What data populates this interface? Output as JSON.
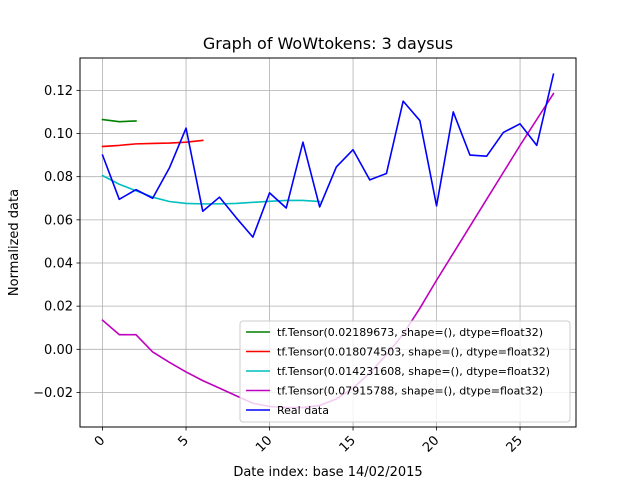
{
  "chart_data": {
    "type": "line",
    "title": "Graph of WoWtokens: 3 daysus",
    "xlabel": "Date index: base 14/02/2015",
    "ylabel": "Normalized data",
    "xlim": [
      -1.35,
      28.35
    ],
    "ylim": [
      -0.036,
      0.135
    ],
    "grid": true,
    "legend_position": "lower-right",
    "x_ticks": [
      0,
      5,
      10,
      15,
      20,
      25
    ],
    "x_tick_labels": [
      "0",
      "5",
      "10",
      "15",
      "20",
      "25"
    ],
    "x_tick_rotation": 45,
    "y_ticks": [
      -0.02,
      0.0,
      0.02,
      0.04,
      0.06,
      0.08,
      0.1,
      0.12
    ],
    "y_tick_labels": [
      "−0.02",
      "0.00",
      "0.02",
      "0.04",
      "0.06",
      "0.08",
      "0.10",
      "0.12"
    ],
    "series": [
      {
        "name": "tf.Tensor(0.02189673, shape=(), dtype=float32)",
        "color": "#008000",
        "x": [
          0,
          1,
          2
        ],
        "values": [
          0.1065,
          0.1055,
          0.1058
        ]
      },
      {
        "name": "tf.Tensor(0.018074503, shape=(), dtype=float32)",
        "color": "#ff0000",
        "x": [
          0,
          1,
          2,
          3,
          4,
          5,
          6
        ],
        "values": [
          0.094,
          0.0945,
          0.0952,
          0.0954,
          0.0956,
          0.096,
          0.0968
        ]
      },
      {
        "name": "tf.Tensor(0.014231608, shape=(), dtype=float32)",
        "color": "#00bfbf",
        "x": [
          0,
          1,
          2,
          3,
          4,
          5,
          6,
          7,
          8,
          9,
          10,
          11,
          12,
          13
        ],
        "values": [
          0.0805,
          0.0765,
          0.0735,
          0.0705,
          0.0685,
          0.0676,
          0.0674,
          0.0674,
          0.0676,
          0.0681,
          0.0686,
          0.069,
          0.069,
          0.0685
        ]
      },
      {
        "name": "tf.Tensor(0.07915788, shape=(), dtype=float32)",
        "color": "#bf00bf",
        "x": [
          0,
          1,
          2,
          3,
          4,
          5,
          6,
          7,
          8,
          9,
          10,
          11,
          12,
          13,
          14,
          15,
          16,
          17,
          18,
          19,
          20,
          21,
          22,
          23,
          24,
          25,
          26,
          27
        ],
        "values": [
          0.0135,
          0.0068,
          0.0068,
          -0.0012,
          -0.006,
          -0.0105,
          -0.0145,
          -0.018,
          -0.0215,
          -0.025,
          -0.0265,
          -0.027,
          -0.027,
          -0.026,
          -0.023,
          -0.018,
          -0.011,
          -0.0025,
          0.007,
          0.019,
          0.032,
          0.0445,
          0.057,
          0.0695,
          0.082,
          0.0945,
          0.1065,
          0.1185
        ]
      },
      {
        "name": "Real data",
        "color": "#0000ff",
        "x": [
          0,
          1,
          2,
          3,
          4,
          5,
          6,
          7,
          8,
          9,
          10,
          11,
          12,
          13,
          14,
          15,
          16,
          17,
          18,
          19,
          20,
          21,
          22,
          23,
          24,
          25,
          26,
          27
        ],
        "values": [
          0.09,
          0.0695,
          0.074,
          0.07,
          0.084,
          0.1025,
          0.064,
          0.0705,
          0.061,
          0.052,
          0.0725,
          0.0655,
          0.096,
          0.066,
          0.0845,
          0.0925,
          0.0785,
          0.0815,
          0.115,
          0.106,
          0.0665,
          0.11,
          0.09,
          0.0895,
          0.1005,
          0.1045,
          0.0945,
          0.1275
        ]
      }
    ]
  }
}
